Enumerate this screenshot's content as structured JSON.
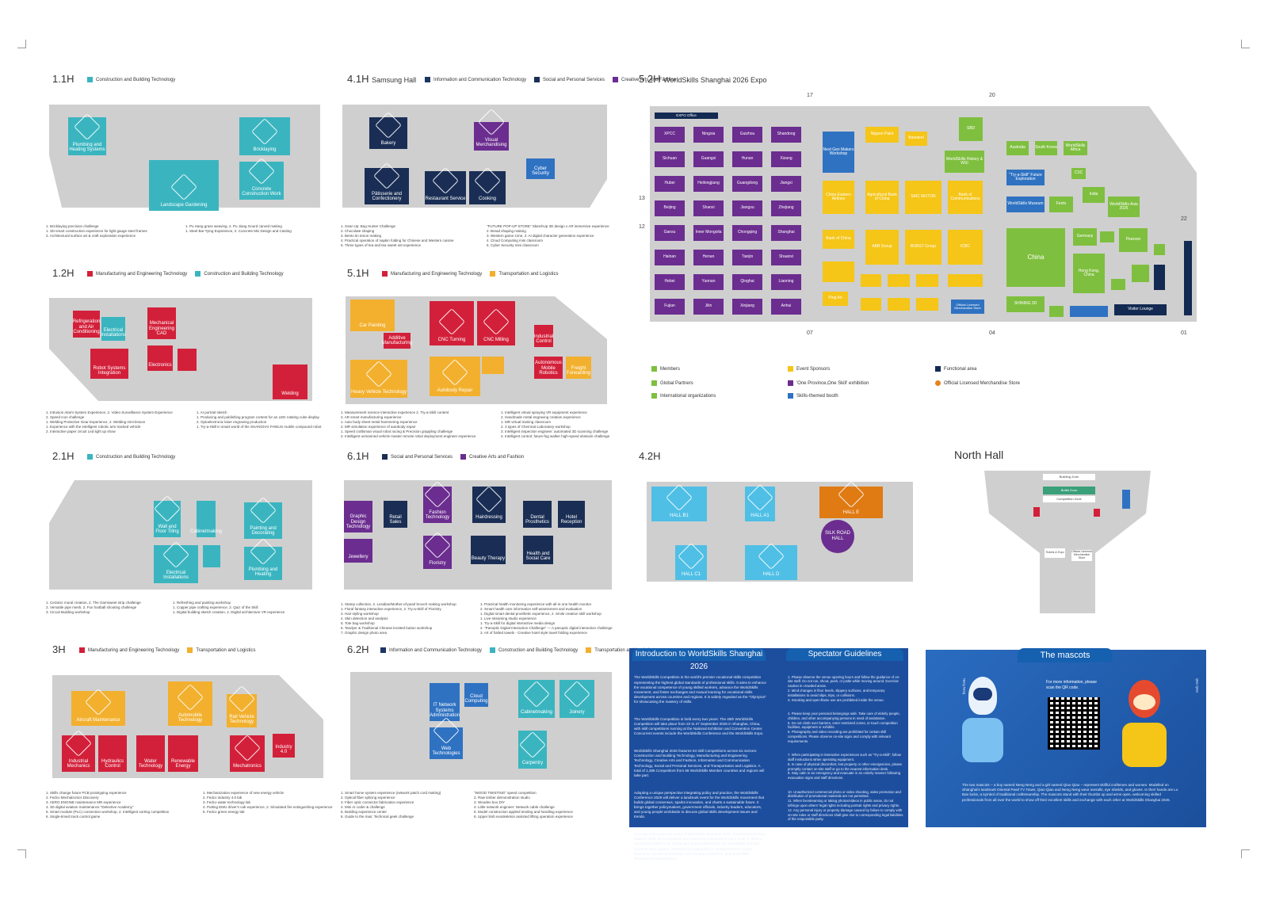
{
  "colors": {
    "construction": "#3ab5c0",
    "manufacturing": "#d3203a",
    "ict": "#1c3664",
    "social": "#1a2e55",
    "creative": "#6b2d8f",
    "transport": "#f2b02e",
    "members": "#7fbf3f",
    "sponsor": "#f5c518",
    "functional": "#132a52",
    "skills_booth": "#2f72c2",
    "store": "#e6821f",
    "hall_grey": "#cfcfcf"
  },
  "halls": {
    "h11": {
      "title": "1.1H",
      "legend": [
        "Construction and Building Technology"
      ],
      "rooms": [
        "Plumbing and Heating Systems",
        "Landscape Gardening",
        "Bricklaying",
        "Concrete Construction Work"
      ],
      "notes": [
        "1. Bricklaying precision challenge",
        "1. 3D-smart construction experience for light gauge steel frames",
        "2. Architectural surface art & craft exploration experience",
        "1. Pu Hang grass weaving, 2. Pu Jiang Gourd carved making",
        "1. Steel Bar Tying Experience, 2. Concrete Mix Design and Casting"
      ]
    },
    "h41": {
      "title": "4.1H",
      "subtitle": "Samsung Hall",
      "legend": [
        "Information and Communication Technology",
        "Social and Personal Services",
        "Creative Arts and Fashion"
      ],
      "rooms": [
        "Bakery",
        "Pâtisserie and Confectionery",
        "Restaurant Service",
        "Cooking",
        "Visual Merchandising",
        "Cyber Security"
      ],
      "notes": [
        "1. Gear-Up: Bug Hunter Challenge",
        "2. Chocolate shaping",
        "3. Bento tin tenon making",
        "4. Practical operation of napkin folding for Chinese and Western cuisine",
        "5. Three types of tea and tea sweet set experience",
        "\"FUTURE POP-UP STORE\" SketchUp 3D design x AR immersive experience",
        "2. Bread shaping making",
        "3. Western game zone, 2. AI digital character generation experience",
        "4. Cloud Computing mini classroom",
        "5. Cyber Security mini classroom"
      ]
    },
    "h52": {
      "title": "5.2H",
      "subtitle": "WorldSkills Shanghai 2026 Expo",
      "provinces": [
        "XPCC",
        "Ningxia",
        "Guizhou",
        "Shandong",
        "Sichuan",
        "Guangxi",
        "Hunan",
        "Xizang",
        "Hubei",
        "Heilongjiang",
        "Guangdong",
        "Jiangxi",
        "Beijing",
        "Shanxi",
        "Jiangsu",
        "Zhejiang",
        "Gansu",
        "Inner Mongolia",
        "Chongqing",
        "Shanghai",
        "Hainan",
        "Henan",
        "Tianjin",
        "Shaanxi",
        "Hebei",
        "Yunnan",
        "Qinghai",
        "Liaoning",
        "Fujian",
        "Jilin",
        "Xinjiang",
        "Anhui"
      ],
      "sponsors": [
        "Nippon Paint",
        "Baosteel",
        "Next Gen Makers Workshop",
        "China Eastern Airlines",
        "Agricultural Bank of China",
        "SAIC MOTOR",
        "Bank of Communications",
        "Bank of China",
        "ABB Group",
        "BOBST Group",
        "ICBC",
        "Ping An",
        "SBD",
        "WorldSkills History & WSI",
        "SHINING 3D"
      ],
      "members": [
        "Australia",
        "South Korea",
        "WorldSkills Africa",
        "\"Try-a-Skill\" Future Exploration",
        "CSC",
        "WorldSkills Museum",
        "Festo",
        "India",
        "WorldSkills Asia 2026",
        "China",
        "Germany",
        "Pearson",
        "Hong Kong, China",
        "Macao",
        "Sweden"
      ],
      "functional": [
        "EXPO Office",
        "Visitor Lounge",
        "Official Licensed Merchandise Store"
      ],
      "gates": [
        "17",
        "20",
        "13",
        "12",
        "22",
        "07",
        "04",
        "01"
      ],
      "legend": [
        {
          "label": "Members",
          "color": "#7fbf3f"
        },
        {
          "label": "Global Partners",
          "color": "#7fbf3f"
        },
        {
          "label": "International organizations",
          "color": "#7fbf3f"
        },
        {
          "label": "Event Sponsors",
          "color": "#f5c518"
        },
        {
          "label": "'One Province,One Skill' exhibition",
          "color": "#6b2d8f"
        },
        {
          "label": "Skills-themed booth",
          "color": "#2f72c2"
        },
        {
          "label": "Functional area",
          "color": "#132a52"
        },
        {
          "label": "Official Licensed Merchandise Store",
          "color": "#e6821f"
        }
      ]
    },
    "h12": {
      "title": "1.2H",
      "legend": [
        "Manufacturing and Engineering Technology",
        "Construction and Building Technology"
      ],
      "rooms": [
        "Refrigeration and Air Conditioning",
        "Electrical Installations",
        "Mechanical Engineering CAD",
        "Electronics",
        "Robot Systems Integration",
        "Welding"
      ],
      "notes": [
        "1. Intrusion Alarm System Experience, 2. Video Surveillance System Experience",
        "2. Speed Icon challenge",
        "1. Welding Protective Gear Experience, 2. Welding mini-lesson",
        "1. Experience with the intelligent robotic arm tracked vehicle",
        "2. Interactive paper circuit Led light up show",
        "1. AI portrait sketch",
        "1. Producing and publishing program content for an LED rotating cube display",
        "2. Optoelectronic laser engraving production",
        "1. Try-a-Skill in smart world of the SHANGHAI FAWLIS mobile compound robot"
      ]
    },
    "h51": {
      "title": "5.1H",
      "legend": [
        "Manufacturing and Engineering Technology",
        "Transportation and Logistics"
      ],
      "rooms": [
        "Car Painting",
        "CNC Turning",
        "CNC Milling",
        "Additive Manufacturing",
        "Industrial Control",
        "Heavy Vehicle Technology",
        "Autobody Repair",
        "Autonomous Mobile Robotics",
        "Freight Forwarding"
      ],
      "notes": [
        "1. Measurement science interactive experience 2. Try-a-Skill content",
        "2. AR smart manufacturing experience",
        "1. Auto body sheet metal hammering experience",
        "2. MR simulation experience of autobody repair",
        "1. Speed craftsman visual robot racing & Precision grappling challenge",
        "2. Intelligent unmanned vehicle master remote robot deployment engineer experience",
        "1. Intelligent virtual spraying VR equipment experience",
        "2. Handmade metal engraving creation experience",
        "1. MR virtual training classroom",
        "2. 3 types of Chemical Laboratory workshop",
        "3. Intelligent inspection engineer: automated 3D scanning challenge",
        "4. Intelligent control: future-fog walker high-speed obstacle challenge"
      ]
    },
    "h21": {
      "title": "2.1H",
      "legend": [
        "Construction and Building Technology"
      ],
      "rooms": [
        "Wall and Floor Tiling",
        "Cabinetmaking",
        "Painting and Decorating",
        "Electrical Installations",
        "Plumbing and Heating"
      ],
      "notes": [
        "1. Ceramic mural creation, 2. The Gamsweet strip challenge",
        "2. Versatile pipe mesh, 2. Fun football shooting challenge",
        "3. Circuit Building workshop",
        "1. Refreshing and painting workshop",
        "1. Copper pipe crafting experience, 2. Quiz of the Skill",
        "1. Digital building sketch creation, 2. Digital architecture VR experience"
      ]
    },
    "h61": {
      "title": "6.1H",
      "legend": [
        "Social and Personal Services",
        "Creative Arts and Fashion"
      ],
      "rooms": [
        "Graphic Design Technology",
        "Retail Sales",
        "Fashion Technology",
        "Hairdressing",
        "Jewellery",
        "Floristry",
        "Beauty Therapy",
        "Health and Social Care",
        "Hotel Reception",
        "Dental Prosthetics"
      ],
      "notes": [
        "1. Stamp collection, 2. Lesidian/Mother-of-pearl brooch making workshop",
        "1. Floral fantasy interactive experience, 2. Try-a-Skill of Floristry",
        "3. Hair styling workshop",
        "4. Skin detection and analysis",
        "5. Tote bag workshop",
        "6. Tandyer & Traditional Chinese knotted button workshop",
        "7. Graphic design photo area",
        "1. Practical health monitoring experience with all-in-one health monitor",
        "2. Smart health care information self-assessment and evaluation",
        "1. Digital smart dental prosthetic experience, 2. Smile creation skill workshop",
        "1. Live streaming studio experience",
        "1. Try-a-Skill for digital interactive media design",
        "2. \"Panoptic Digital Interaction Challenge\" — A panoptic digital interaction challenge",
        "3. Art of folded towels - Creative hotel style towel folding experience"
      ]
    },
    "h42": {
      "title": "4.2H",
      "rooms": [
        "HALL B1",
        "HALL A1",
        "HALL E",
        "SILK ROAD HALL",
        "HALL C1",
        "HALL D"
      ]
    },
    "north": {
      "title": "North Hall",
      "labels": [
        "Building Zone",
        "Buffet Zone",
        "Competition Zone",
        "Tickets & Expo",
        "Official Licensed Merchandise Store"
      ]
    },
    "h3": {
      "title": "3H",
      "legend": [
        "Manufacturing and Engineering Technology",
        "Transportation and Logistics"
      ],
      "rooms": [
        "Aircraft Maintenance",
        "Automobile Technology",
        "Rail Vehicle Technology",
        "Industrial Mechanics",
        "Hydraulics Control",
        "Water Technology",
        "Renewable Energy",
        "Mechatronics",
        "Industry 4.0"
      ],
      "notes": [
        "1. Skills change future PCB prototyping experience",
        "2. Fedco Mechatronics Discovery",
        "3. AERO ENGINE maintenance MR experience",
        "4. 3D digital aviation maintenance \"Detective Academy\"",
        "5. Smart module (PLC) connection workshop, 2. Intelligent sorting competition",
        "6. Single-timed track control game",
        "1. Mechanization experience of new energy vehicle",
        "2. Fedco industry 4.0 lab",
        "3. Fedco water technology lab",
        "4. Putting EMU driver's cab experience, 2. Simulated fire extinguishing experience",
        "5. Fedco green energy lab"
      ]
    },
    "h62": {
      "title": "6.2H",
      "legend": [
        "Information and Communication Technology",
        "Construction and Building Technology",
        "Transportation and Logistics"
      ],
      "rooms": [
        "IT Network Systems Administration",
        "Web Technologies",
        "Cabinetmaking",
        "Joinery",
        "Carpentry",
        "Cloud Computing"
      ],
      "notes": [
        "1. Smart home system experience (network patch cord making)",
        "2. Optical fiber splicing experience",
        "3. Fiber optic connector fabrication experience",
        "4. Mini AI coder & challenge",
        "5. Building experience center",
        "6. Guide to the mas: Technical geek challenge",
        "\"WOOD TWISTING\" speed competition",
        "2. Raw timber demonstration studio",
        "3. Wooden box DIY",
        "4. Little network engineer: Network cable challenge",
        "5. Model construction applied tending and handling experience",
        "6. Upper limb exoskeleton assisted lifting operation experience"
      ]
    }
  },
  "intro": {
    "title": "Introduction to WorldSkills Shanghai 2026",
    "paragraphs": [
      "The WorldSkills Competition is the world's premier vocational skills competition representing the highest global standards of professional skills. It aims to enhance the vocational competence of young skilled workers, advance the WorldSkills movement, and foster exchanges and mutual learning for vocational skills development across countries and regions. It is widely regarded as the \"Olympics\" for showcasing the mastery of skills.",
      "The WorldSkills Competition is held every two years. The 48th WorldSkills Competition will take place from 22 to 27 September 2026 in Shanghai, China, with skill competitions running at the National Exhibition and Convention Center. Concurrent events include the WorldSkills Conference and the WorldSkills Expo.",
      "WorldSkills Shanghai 2026 features 64 skill Competitions across six sectors: Construction and Building Technology, Manufacturing and Engineering Technology, Creative Arts and Fashion, Information and Communication Technology, Social and Personal Services, and Transportation and Logistics. A total of 1,385 Competitors from 68 WorldSkills Member countries and regions will take part.",
      "Adopting a unique perspective integrating policy and practice, the WorldSkills Conference 2026 will deliver a landmark event for the WorldSkills movement that builds global consensus, sparks innovation, and charts a sustainable future. It brings together policymakers, government officials, industry leaders, educators, and young people worldwide to discuss global skills development issues and trends.",
      "As a key showcase sub-event of WorldSkills Shanghai 2026, the WorldSkills Expo features skills demonstrations and interactive experiences open to all. It offers a centralized platform for exchanges and exhibitions for the WorldSkills Member countries and regions, international organizations, Global Partners, Event Sponsors, vocational education and training institutions, and other skills development stakeholders."
    ]
  },
  "guide": {
    "title": "Spectator Guidelines",
    "items": [
      "1. Please observe the venue opening hours and follow the guidance of on-site staff. Do not run, shout, push, or jostle while moving around. Exercise caution in crowded areas.",
      "2. Mind changes in floor levels, slippery surfaces, and temporary installations to avoid slips, trips, or collisions.",
      "3. Smoking and open-flame use are prohibited inside the venue.",
      "4. Please keep your personal belongings safe. Take care of elderly people, children, and other accompanying persons in need of assistance.",
      "5. Do not climb over barriers, enter restricted zones, or touch competition facilities, equipment or exhibits.",
      "6. Photography and video recording are prohibited for certain skill competitions. Please observe on-site signs and comply with relevant requirements.",
      "7. When participating in interactive experiences such as \"Try-a-Skill\", follow staff instructions when operating equipment.",
      "8. In case of physical discomfort, lost property or other emergencies, please promptly contact on-site staff or go to the nearest information desk.",
      "9. Stay calm in an emergency and evacuate in an orderly manner following evacuation signs and staff directions.",
      "10. Unauthorized commercial photo or video shooting, sales promotion and distribution of promotional materials are not permitted.",
      "11. When livestreaming or taking photos/videos in public areas, do not infringe upon others' legal rights including portrait rights and privacy rights.",
      "12. Any personal injury or property damage caused by failure to comply with on-site rules or staff directions shall give rise to corresponding legal liabilities of the responsible party."
    ]
  },
  "mascots": {
    "title": "The mascots",
    "qr_note": "For more information, please scan the QR code.",
    "name_left": "Neng Neng",
    "name_right": "Qiao Qiao",
    "text": "The two mascots – a boy named Neng Neng and a girl named Qiao Qiao – represent skillful craftsmen and women. Modelled on Shanghai's landmark Oriental Pearl TV Tower, Qiao Qiao and Neng Neng wear overalls, eye shields, and gloves. In their hands are Lu Ban locks, a symbol of traditional craftsmanship. The mascots stand with their thumbs up and arms open, welcoming skilled professionals from all over the world to show off their excellent skills and exchange with each other at WorldSkills Shanghai 2026."
  }
}
